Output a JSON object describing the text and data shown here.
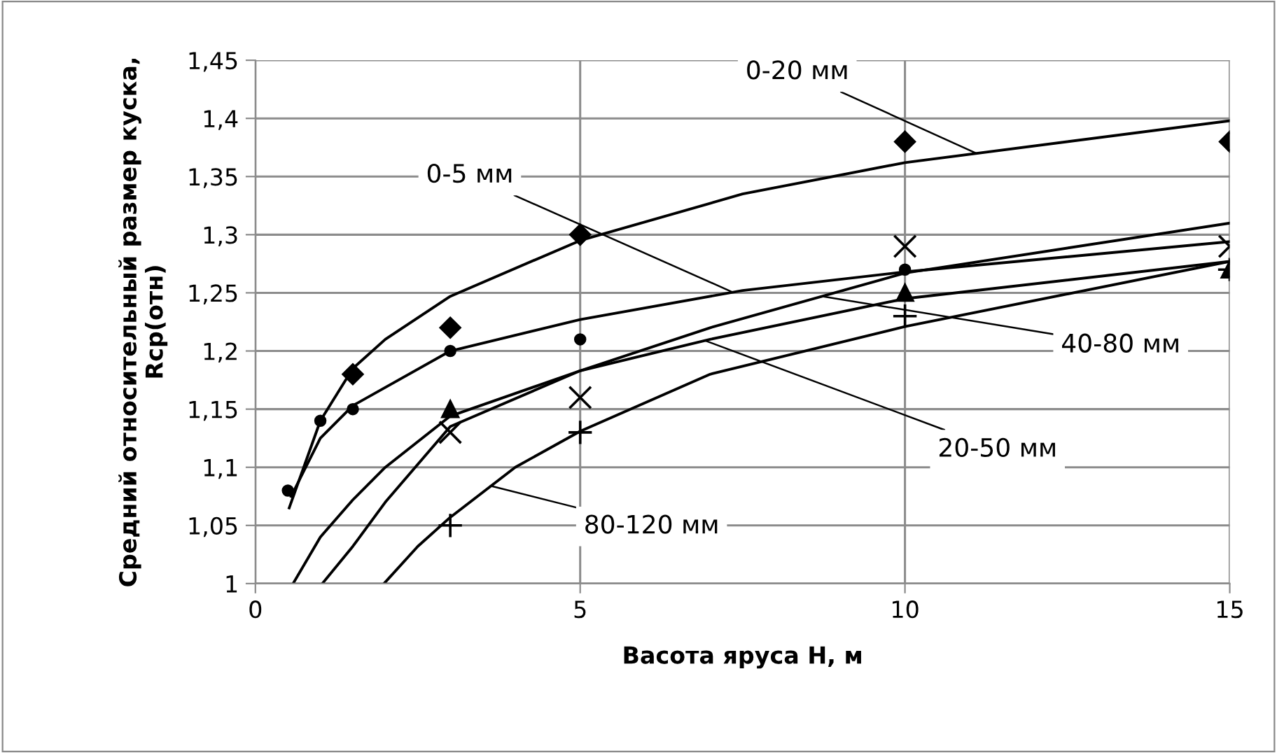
{
  "chart_data": {
    "type": "scatter",
    "xlabel": "Васота яруса H, м",
    "ylabel": "Средний относительный размер куска, Rср(отн)",
    "xlim": [
      0,
      15
    ],
    "xticks": [
      0,
      5,
      10,
      15
    ],
    "ylim": [
      1,
      1.45
    ],
    "yticks": [
      {
        "value": 1,
        "label": "1"
      },
      {
        "value": 1.05,
        "label": "1,05"
      },
      {
        "value": 1.1,
        "label": "1,1"
      },
      {
        "value": 1.15,
        "label": "1,15"
      },
      {
        "value": 1.2,
        "label": "1,2"
      },
      {
        "value": 1.25,
        "label": "1,25"
      },
      {
        "value": 1.3,
        "label": "1,3"
      },
      {
        "value": 1.35,
        "label": "1,35"
      },
      {
        "value": 1.4,
        "label": "1,4"
      },
      {
        "value": 1.45,
        "label": "1,45"
      }
    ],
    "grid": true,
    "series": [
      {
        "marker": "diamond",
        "color": "#000000",
        "x": [
          1.5,
          3,
          5,
          10,
          15
        ],
        "values": [
          1.18,
          1.22,
          1.3,
          1.38,
          1.38
        ]
      },
      {
        "marker": "circle",
        "color": "#000000",
        "x": [
          0.5,
          1,
          1.5,
          3,
          5,
          10
        ],
        "values": [
          1.08,
          1.14,
          1.15,
          1.2,
          1.21,
          1.27
        ]
      },
      {
        "marker": "triangle",
        "color": "#000000",
        "x": [
          3,
          10,
          15
        ],
        "values": [
          1.15,
          1.25,
          1.27
        ]
      },
      {
        "marker": "cross",
        "color": "#000000",
        "x": [
          3,
          5,
          10,
          15
        ],
        "values": [
          1.13,
          1.16,
          1.29,
          1.29
        ]
      },
      {
        "marker": "plus",
        "color": "#000000",
        "x": [
          3,
          5,
          10,
          15
        ],
        "values": [
          1.05,
          1.13,
          1.23,
          1.27
        ]
      },
      {
        "type": "line",
        "marker": "none",
        "color": "#000000",
        "x": [
          0.52,
          1,
          1.5,
          2,
          3,
          5,
          7.5,
          10,
          15
        ],
        "values": [
          1.065,
          1.14,
          1.185,
          1.21,
          1.247,
          1.295,
          1.335,
          1.362,
          1.398
        ]
      },
      {
        "type": "line",
        "marker": "none",
        "color": "#000000",
        "x": [
          0.55,
          1,
          1.5,
          3,
          5,
          7.5,
          10,
          15
        ],
        "values": [
          1.075,
          1.125,
          1.153,
          1.2,
          1.227,
          1.252,
          1.268,
          1.294
        ]
      },
      {
        "type": "line",
        "marker": "none",
        "color": "#000000",
        "x": [
          0.58,
          1,
          1.5,
          2,
          3,
          5,
          7,
          10,
          15
        ],
        "values": [
          1.0,
          1.04,
          1.072,
          1.1,
          1.144,
          1.183,
          1.21,
          1.245,
          1.277
        ]
      },
      {
        "type": "line",
        "marker": "none",
        "color": "#000000",
        "x": [
          1.03,
          1.5,
          2,
          3,
          5,
          7,
          10,
          15
        ],
        "values": [
          1.0,
          1.032,
          1.07,
          1.135,
          1.183,
          1.22,
          1.267,
          1.31
        ]
      },
      {
        "type": "line",
        "marker": "none",
        "color": "#000000",
        "x": [
          1.98,
          2.5,
          3,
          4,
          5,
          7,
          10,
          15
        ],
        "values": [
          1.0,
          1.032,
          1.057,
          1.1,
          1.131,
          1.18,
          1.221,
          1.277
        ]
      }
    ],
    "annotations": [
      {
        "text": "0-20 мм",
        "x": 11.1,
        "y": 1.37
      },
      {
        "text": "0-5 мм",
        "x": 7.33,
        "y": 1.251
      },
      {
        "text": "40-80 мм",
        "x": 8.73,
        "y": 1.247
      },
      {
        "text": "20-50 мм",
        "x": 6.92,
        "y": 1.209
      },
      {
        "text": "80-120 мм",
        "x": 3.62,
        "y": 1.084
      }
    ]
  }
}
